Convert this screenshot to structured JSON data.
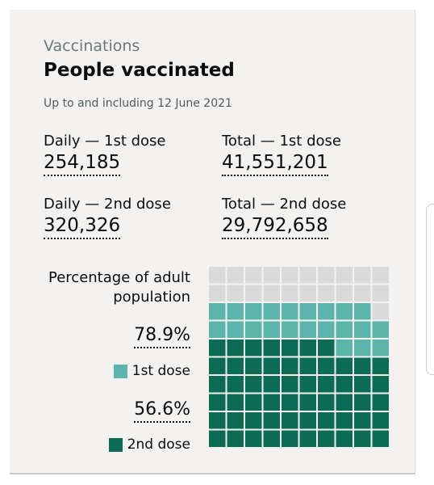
{
  "header": {
    "caption": "Vaccinations",
    "title": "People vaccinated",
    "subtitle": "Up to and including 12 June 2021"
  },
  "stats": [
    {
      "label": "Daily — 1st dose",
      "value": "254,185"
    },
    {
      "label": "Total — 1st dose",
      "value": "41,551,201"
    },
    {
      "label": "Daily — 2nd dose",
      "value": "320,326"
    },
    {
      "label": "Total — 2nd dose",
      "value": "29,792,658"
    }
  ],
  "waffle": {
    "title": "Percentage of adult population",
    "series": [
      {
        "name": "1st dose",
        "value": 78.9,
        "value_label": "78.9%",
        "color": "#5bb5aa"
      },
      {
        "name": "2nd dose",
        "value": 56.6,
        "value_label": "56.6%",
        "color": "#0b6b55"
      }
    ]
  }
}
